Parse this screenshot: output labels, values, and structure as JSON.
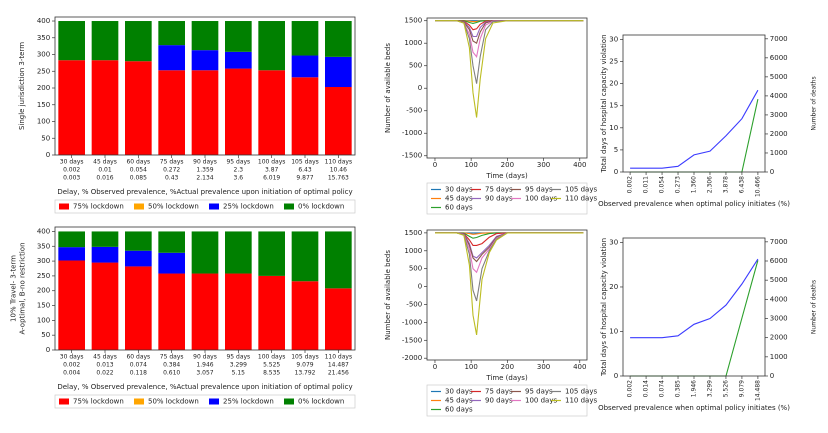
{
  "chart_data": [
    {
      "type": "bar",
      "stacked": true,
      "ylabel": [
        "Single jurisdiction 3-term"
      ],
      "xlabel": "Delay, % Observed prevalence, %Actual prevalence upon initiation of optimal policy",
      "categories": [
        [
          "30 days",
          "0.002",
          "0.003"
        ],
        [
          "45 days",
          "0.01",
          "0.016"
        ],
        [
          "60 days",
          "0.054",
          "0.085"
        ],
        [
          "75 days",
          "0.272",
          "0.43"
        ],
        [
          "90 days",
          "1.359",
          "2.134"
        ],
        [
          "95 days",
          "2.3",
          "3.6"
        ],
        [
          "100 days",
          "3.87",
          "6.019"
        ],
        [
          "105 days",
          "6.43",
          "9.877"
        ],
        [
          "110 days",
          "10.46",
          "15.763"
        ]
      ],
      "series": [
        {
          "name": "75% lockdown",
          "color": "#ff0000",
          "values": [
            283,
            283,
            280,
            253,
            253,
            258,
            253,
            232,
            203
          ]
        },
        {
          "name": "50% lockdown",
          "color": "#ffa500",
          "values": [
            0,
            0,
            0,
            0,
            0,
            0,
            0,
            0,
            0
          ]
        },
        {
          "name": "25% lockdown",
          "color": "#0000ff",
          "values": [
            0,
            0,
            0,
            75,
            60,
            50,
            0,
            65,
            90
          ]
        },
        {
          "name": "0% lockdown",
          "color": "#008000",
          "values": [
            117,
            117,
            120,
            72,
            87,
            92,
            147,
            103,
            107
          ]
        }
      ],
      "ylim": [
        0,
        412
      ],
      "yticks": [
        0,
        50,
        100,
        150,
        200,
        250,
        300,
        350,
        400
      ]
    },
    {
      "type": "bar",
      "stacked": true,
      "ylabel": [
        "10% Travel- 3-term",
        "A-optimal, B-no restriction"
      ],
      "xlabel": "Delay, % Observed prevalence, %Actual prevalence upon initiation of optimal policy",
      "categories": [
        [
          "30 days",
          "0.002",
          "0.004"
        ],
        [
          "45 days",
          "0.013",
          "0.022"
        ],
        [
          "60 days",
          "0.074",
          "0.118"
        ],
        [
          "75 days",
          "0.384",
          "0.610"
        ],
        [
          "90 days",
          "1.946",
          "3.057"
        ],
        [
          "95 days",
          "3.299",
          "5.15"
        ],
        [
          "100 days",
          "5.525",
          "8.535"
        ],
        [
          "105 days",
          "9.079",
          "13.792"
        ],
        [
          "110 days",
          "14.487",
          "21.456"
        ]
      ],
      "series": [
        {
          "name": "75% lockdown",
          "color": "#ff0000",
          "values": [
            302,
            295,
            282,
            258,
            258,
            258,
            250,
            232,
            208
          ]
        },
        {
          "name": "50% lockdown",
          "color": "#ffa500",
          "values": [
            0,
            0,
            0,
            0,
            0,
            0,
            0,
            0,
            0
          ]
        },
        {
          "name": "25% lockdown",
          "color": "#0000ff",
          "values": [
            45,
            53,
            53,
            70,
            0,
            0,
            0,
            0,
            0
          ]
        },
        {
          "name": "0% lockdown",
          "color": "#008000",
          "values": [
            53,
            52,
            65,
            72,
            142,
            142,
            150,
            168,
            192
          ]
        }
      ],
      "ylim": [
        0,
        415
      ],
      "yticks": [
        0,
        50,
        100,
        150,
        200,
        250,
        300,
        350,
        400
      ]
    },
    {
      "type": "line",
      "ylabel": "Number of available beds",
      "xlabel": "Time (days)",
      "legend_ncol": 4,
      "x": [
        0,
        60,
        80,
        95,
        105,
        115,
        125,
        140,
        160,
        200,
        300,
        410
      ],
      "series": [
        {
          "name": "30 days",
          "color": "#1f77b4",
          "values": [
            1500,
            1500,
            1500,
            1500,
            1500,
            1500,
            1500,
            1500,
            1500,
            1500,
            1500,
            1500
          ]
        },
        {
          "name": "45 days",
          "color": "#ff7f0e",
          "values": [
            1500,
            1500,
            1500,
            1490,
            1480,
            1485,
            1495,
            1500,
            1500,
            1500,
            1500,
            1500
          ]
        },
        {
          "name": "60 days",
          "color": "#2ca02c",
          "values": [
            1500,
            1500,
            1500,
            1460,
            1440,
            1460,
            1490,
            1500,
            1500,
            1500,
            1500,
            1500
          ]
        },
        {
          "name": "75 days",
          "color": "#d62728",
          "values": [
            1500,
            1500,
            1490,
            1400,
            1300,
            1320,
            1420,
            1490,
            1500,
            1500,
            1500,
            1500
          ]
        },
        {
          "name": "90 days",
          "color": "#9467bd",
          "values": [
            1500,
            1500,
            1480,
            1350,
            1150,
            1150,
            1350,
            1470,
            1500,
            1500,
            1500,
            1500
          ]
        },
        {
          "name": "95 days",
          "color": "#8c564b",
          "values": [
            1500,
            1500,
            1470,
            1300,
            1050,
            1000,
            1250,
            1450,
            1500,
            1500,
            1500,
            1500
          ]
        },
        {
          "name": "100 days",
          "color": "#e377c2",
          "values": [
            1500,
            1500,
            1450,
            1200,
            800,
            700,
            1100,
            1400,
            1490,
            1500,
            1500,
            1500
          ]
        },
        {
          "name": "105 days",
          "color": "#7f7f7f",
          "values": [
            1500,
            1500,
            1450,
            1100,
            500,
            100,
            700,
            1300,
            1480,
            1500,
            1500,
            1500
          ]
        },
        {
          "name": "110 days",
          "color": "#bcbd22",
          "values": [
            1500,
            1500,
            1450,
            900,
            -100,
            -650,
            200,
            1100,
            1450,
            1500,
            1500,
            1500
          ]
        }
      ],
      "xlim": [
        -22,
        420
      ],
      "xticks": [
        0,
        100,
        200,
        300,
        400
      ],
      "ylim": [
        -1550,
        1560
      ],
      "yticks": [
        -1500,
        -1000,
        -500,
        0,
        500,
        1000,
        1500
      ]
    },
    {
      "type": "line",
      "ylabel": "Number of available beds",
      "xlabel": "Time (days)",
      "legend_ncol": 4,
      "x": [
        0,
        60,
        80,
        95,
        105,
        115,
        130,
        150,
        170,
        200,
        300,
        410
      ],
      "series": [
        {
          "name": "30 days",
          "color": "#1f77b4",
          "values": [
            1500,
            1500,
            1500,
            1500,
            1500,
            1500,
            1500,
            1500,
            1500,
            1500,
            1500,
            1500
          ]
        },
        {
          "name": "45 days",
          "color": "#ff7f0e",
          "values": [
            1500,
            1500,
            1500,
            1480,
            1460,
            1470,
            1490,
            1500,
            1500,
            1500,
            1500,
            1500
          ]
        },
        {
          "name": "60 days",
          "color": "#2ca02c",
          "values": [
            1500,
            1500,
            1490,
            1400,
            1350,
            1370,
            1430,
            1480,
            1500,
            1500,
            1500,
            1500
          ]
        },
        {
          "name": "75 days",
          "color": "#d62728",
          "values": [
            1500,
            1500,
            1480,
            1300,
            1150,
            1150,
            1200,
            1380,
            1480,
            1500,
            1500,
            1500
          ]
        },
        {
          "name": "90 days",
          "color": "#9467bd",
          "values": [
            1500,
            1500,
            1470,
            1200,
            850,
            800,
            950,
            1150,
            1400,
            1500,
            1500,
            1500
          ]
        },
        {
          "name": "95 days",
          "color": "#8c564b",
          "values": [
            1500,
            1500,
            1460,
            1150,
            800,
            700,
            900,
            1100,
            1380,
            1500,
            1500,
            1500
          ]
        },
        {
          "name": "100 days",
          "color": "#e377c2",
          "values": [
            1500,
            1500,
            1450,
            1050,
            500,
            400,
            800,
            1050,
            1350,
            1500,
            1500,
            1500
          ]
        },
        {
          "name": "105 days",
          "color": "#7f7f7f",
          "values": [
            1500,
            1500,
            1440,
            900,
            -100,
            -400,
            500,
            1000,
            1330,
            1500,
            1500,
            1500
          ]
        },
        {
          "name": "110 days",
          "color": "#bcbd22",
          "values": [
            1500,
            1500,
            1430,
            600,
            -800,
            -1350,
            200,
            950,
            1300,
            1500,
            1500,
            1500
          ]
        }
      ],
      "xlim": [
        -22,
        420
      ],
      "xticks": [
        0,
        100,
        200,
        300,
        400
      ],
      "ylim": [
        -2050,
        1580
      ],
      "yticks": [
        -2000,
        -1500,
        -1000,
        -500,
        0,
        500,
        1000,
        1500
      ]
    },
    {
      "type": "line",
      "ylabel": "Total days of hospital capacity violation",
      "y2label": "Number of deaths",
      "xlabel": "Observed prevalence when optimal policy initiates (%)",
      "categories": [
        "0.002",
        "0.011",
        "0.054",
        "0.273",
        "1.360",
        "2.306",
        "3.878",
        "6.438",
        "10.466"
      ],
      "series": [
        {
          "name": "Total days of hospital capacity violation",
          "color": "#2ca02c",
          "values": [
            0,
            0,
            0,
            0,
            0,
            0,
            0,
            0,
            16.5
          ]
        },
        {
          "name": "Number of deaths",
          "color": "#3b3bff",
          "axis": "y2",
          "values": [
            200,
            200,
            200,
            300,
            900,
            1100,
            1900,
            2800,
            4300
          ]
        }
      ],
      "ylim": [
        0,
        31
      ],
      "yticks": [
        0,
        5,
        10,
        15,
        20,
        25,
        30
      ],
      "y2lim": [
        0,
        7200
      ],
      "y2ticks": [
        0,
        1000,
        2000,
        3000,
        4000,
        5000,
        6000,
        7000
      ]
    },
    {
      "type": "line",
      "ylabel": "Total days of hospital capacity violation",
      "y2label": "Number of deaths",
      "xlabel": "Observed prevalence when optimal policy initiates (%)",
      "categories": [
        "0.002",
        "0.014",
        "0.074",
        "0.385",
        "1.946",
        "3.299",
        "5.526",
        "9.079",
        "14.488"
      ],
      "series": [
        {
          "name": "Total days of hospital capacity violation",
          "color": "#2ca02c",
          "values": [
            0,
            0,
            0,
            0,
            0,
            0,
            0,
            13,
            26
          ]
        },
        {
          "name": "Number of deaths",
          "color": "#3b3bff",
          "axis": "y2",
          "values": [
            2000,
            2000,
            2000,
            2100,
            2700,
            3000,
            3700,
            4800,
            6100
          ]
        }
      ],
      "ylim": [
        0,
        31
      ],
      "yticks": [
        0,
        10,
        20,
        30
      ],
      "y2lim": [
        0,
        7200
      ],
      "y2ticks": [
        0,
        1000,
        2000,
        3000,
        4000,
        5000,
        6000,
        7000
      ]
    }
  ]
}
